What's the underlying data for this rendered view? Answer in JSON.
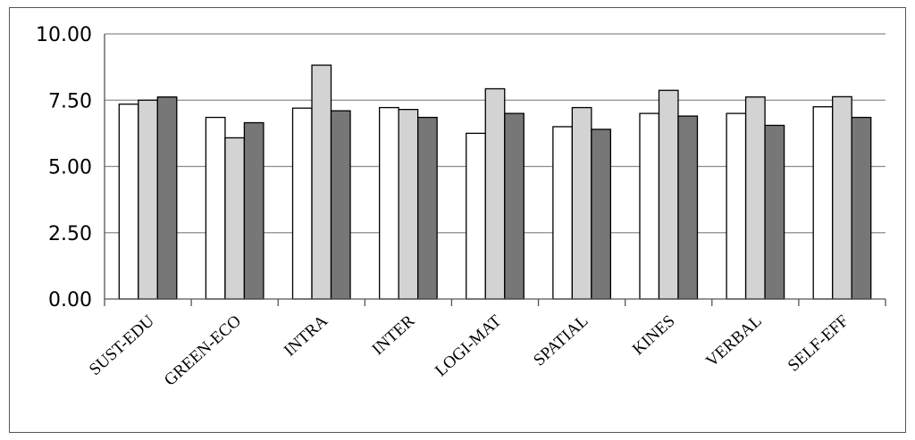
{
  "chart_data": {
    "type": "bar",
    "categories": [
      "SUST-EDU",
      "GREEN-ECO",
      "INTRA",
      "INTER",
      "LOGI-MAT",
      "SPATIAL",
      "KINES",
      "VERBAL",
      "SELF-EFF"
    ],
    "series": [
      {
        "color": "#ffffff",
        "values": [
          7.35,
          6.85,
          7.2,
          7.22,
          6.25,
          6.5,
          7.0,
          7.0,
          7.25
        ]
      },
      {
        "color": "#d3d3d3",
        "values": [
          7.5,
          6.08,
          8.82,
          7.15,
          7.93,
          7.22,
          7.87,
          7.62,
          7.63
        ]
      },
      {
        "color": "#777777",
        "values": [
          7.62,
          6.65,
          7.1,
          6.85,
          7.0,
          6.4,
          6.9,
          6.55,
          6.85
        ]
      }
    ],
    "yticks": [
      "0.00",
      "2.50",
      "5.00",
      "7.50",
      "10.00"
    ],
    "ylim": [
      0,
      10
    ],
    "grid": true
  }
}
